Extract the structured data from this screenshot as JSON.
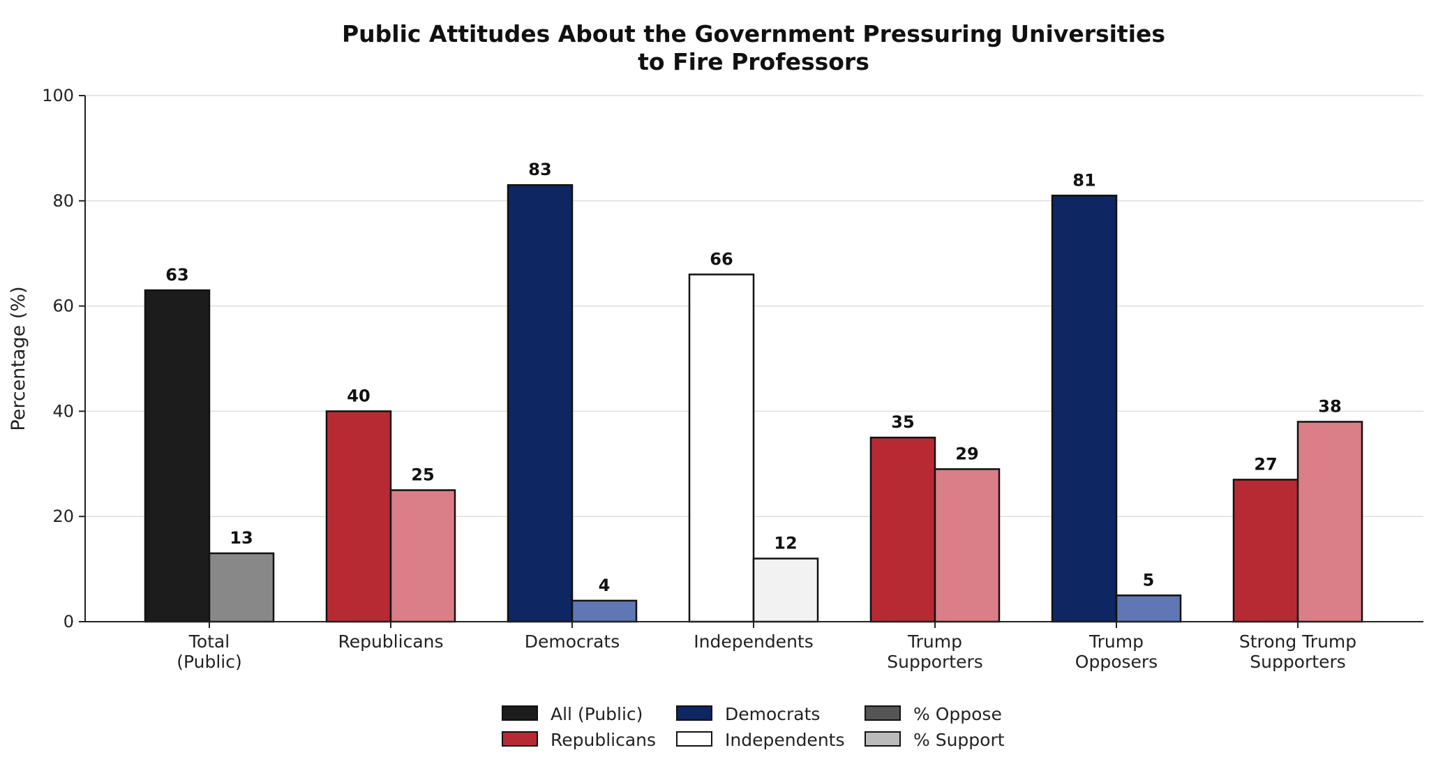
{
  "chart_data": {
    "type": "bar",
    "title_lines": [
      "Public Attitudes About the Government Pressuring Universities",
      "to Fire Professors"
    ],
    "ylabel": "Percentage (%)",
    "xlabel": "",
    "ylim": [
      0,
      100
    ],
    "yticks": [
      0,
      20,
      40,
      60,
      80,
      100
    ],
    "grid": "horizontal",
    "legend_position": "bottom-center",
    "categories": [
      [
        "Total",
        "(Public)"
      ],
      [
        "Republicans"
      ],
      [
        "Democrats"
      ],
      [
        "Independents"
      ],
      [
        "Trump",
        "Supporters"
      ],
      [
        "Trump",
        "Opposers"
      ],
      [
        "Strong Trump",
        "Supporters"
      ]
    ],
    "series": [
      {
        "name": "% Oppose",
        "values": [
          63,
          40,
          83,
          66,
          35,
          81,
          27
        ]
      },
      {
        "name": "% Support",
        "values": [
          13,
          25,
          4,
          12,
          29,
          5,
          38
        ]
      }
    ],
    "bar_colors": {
      "oppose": [
        "#1c1c1c",
        "#b82a33",
        "#0e2661",
        "#ffffff",
        "#b82a33",
        "#0e2661",
        "#b82a33"
      ],
      "support": [
        "#888888",
        "#da7f87",
        "#5f77b4",
        "#f2f2f2",
        "#da7f87",
        "#5f77b4",
        "#da7f87"
      ]
    },
    "legend": [
      {
        "label": "All (Public)",
        "color": "#1c1c1c"
      },
      {
        "label": "Republicans",
        "color": "#b82a33"
      },
      {
        "label": "Democrats",
        "color": "#0e2661"
      },
      {
        "label": "Independents",
        "color": "#ffffff"
      },
      {
        "label": "% Oppose",
        "color": "#555555"
      },
      {
        "label": "% Support",
        "color": "#bbbbbb"
      }
    ]
  }
}
